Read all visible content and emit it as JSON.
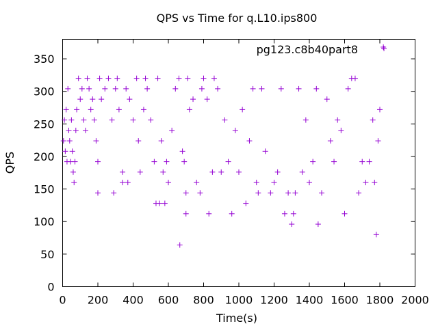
{
  "chart_data": {
    "type": "scatter",
    "title": "QPS vs Time for q.L10.ips800",
    "xlabel": "Time(s)",
    "ylabel": "QPS",
    "xlim": [
      0,
      2000
    ],
    "ylim": [
      0,
      380
    ],
    "xticks": [
      "0",
      "200",
      "400",
      "600",
      "800",
      "1000",
      "1200",
      "1400",
      "1600",
      "1800",
      "2000"
    ],
    "yticks": [
      "0",
      "50",
      "100",
      "150",
      "200",
      "250",
      "300",
      "350"
    ],
    "grid": false,
    "legend_position": "top-right",
    "marker": "plus",
    "series_color": "#9400d3",
    "series": [
      {
        "name": "pg123.c8b40part8",
        "points": [
          [
            5,
            224
          ],
          [
            10,
            256
          ],
          [
            15,
            208
          ],
          [
            20,
            272
          ],
          [
            25,
            192
          ],
          [
            30,
            304
          ],
          [
            35,
            240
          ],
          [
            40,
            224
          ],
          [
            45,
            192
          ],
          [
            50,
            256
          ],
          [
            55,
            208
          ],
          [
            60,
            176
          ],
          [
            65,
            160
          ],
          [
            70,
            192
          ],
          [
            75,
            240
          ],
          [
            80,
            272
          ],
          [
            90,
            320
          ],
          [
            100,
            288
          ],
          [
            110,
            304
          ],
          [
            120,
            256
          ],
          [
            130,
            240
          ],
          [
            140,
            320
          ],
          [
            150,
            304
          ],
          [
            160,
            272
          ],
          [
            170,
            288
          ],
          [
            180,
            256
          ],
          [
            190,
            224
          ],
          [
            200,
            192
          ],
          [
            200,
            144
          ],
          [
            210,
            320
          ],
          [
            220,
            288
          ],
          [
            240,
            304
          ],
          [
            260,
            320
          ],
          [
            280,
            256
          ],
          [
            290,
            144
          ],
          [
            300,
            304
          ],
          [
            310,
            320
          ],
          [
            320,
            272
          ],
          [
            340,
            160
          ],
          [
            340,
            176
          ],
          [
            360,
            304
          ],
          [
            370,
            160
          ],
          [
            380,
            288
          ],
          [
            400,
            256
          ],
          [
            420,
            320
          ],
          [
            430,
            224
          ],
          [
            440,
            176
          ],
          [
            460,
            272
          ],
          [
            470,
            320
          ],
          [
            480,
            304
          ],
          [
            500,
            256
          ],
          [
            520,
            192
          ],
          [
            530,
            128
          ],
          [
            540,
            320
          ],
          [
            550,
            128
          ],
          [
            560,
            224
          ],
          [
            570,
            176
          ],
          [
            580,
            128
          ],
          [
            590,
            192
          ],
          [
            600,
            160
          ],
          [
            620,
            240
          ],
          [
            640,
            304
          ],
          [
            660,
            320
          ],
          [
            665,
            64
          ],
          [
            680,
            208
          ],
          [
            690,
            192
          ],
          [
            700,
            112
          ],
          [
            700,
            144
          ],
          [
            710,
            320
          ],
          [
            720,
            272
          ],
          [
            740,
            288
          ],
          [
            760,
            160
          ],
          [
            780,
            144
          ],
          [
            790,
            304
          ],
          [
            800,
            320
          ],
          [
            820,
            288
          ],
          [
            830,
            112
          ],
          [
            850,
            176
          ],
          [
            860,
            320
          ],
          [
            880,
            304
          ],
          [
            900,
            176
          ],
          [
            920,
            256
          ],
          [
            940,
            192
          ],
          [
            960,
            112
          ],
          [
            980,
            240
          ],
          [
            1000,
            176
          ],
          [
            1020,
            272
          ],
          [
            1040,
            128
          ],
          [
            1060,
            224
          ],
          [
            1080,
            304
          ],
          [
            1100,
            160
          ],
          [
            1110,
            144
          ],
          [
            1130,
            304
          ],
          [
            1150,
            208
          ],
          [
            1180,
            144
          ],
          [
            1200,
            160
          ],
          [
            1220,
            176
          ],
          [
            1240,
            304
          ],
          [
            1260,
            112
          ],
          [
            1280,
            144
          ],
          [
            1300,
            96
          ],
          [
            1310,
            112
          ],
          [
            1320,
            144
          ],
          [
            1340,
            304
          ],
          [
            1360,
            176
          ],
          [
            1380,
            256
          ],
          [
            1400,
            160
          ],
          [
            1420,
            192
          ],
          [
            1440,
            304
          ],
          [
            1450,
            96
          ],
          [
            1470,
            144
          ],
          [
            1500,
            288
          ],
          [
            1520,
            224
          ],
          [
            1540,
            192
          ],
          [
            1560,
            256
          ],
          [
            1580,
            240
          ],
          [
            1600,
            112
          ],
          [
            1620,
            304
          ],
          [
            1640,
            320
          ],
          [
            1660,
            320
          ],
          [
            1680,
            144
          ],
          [
            1700,
            192
          ],
          [
            1720,
            160
          ],
          [
            1740,
            192
          ],
          [
            1760,
            256
          ],
          [
            1770,
            160
          ],
          [
            1780,
            80
          ],
          [
            1790,
            224
          ],
          [
            1800,
            272
          ],
          [
            1820,
            368
          ]
        ]
      }
    ]
  }
}
